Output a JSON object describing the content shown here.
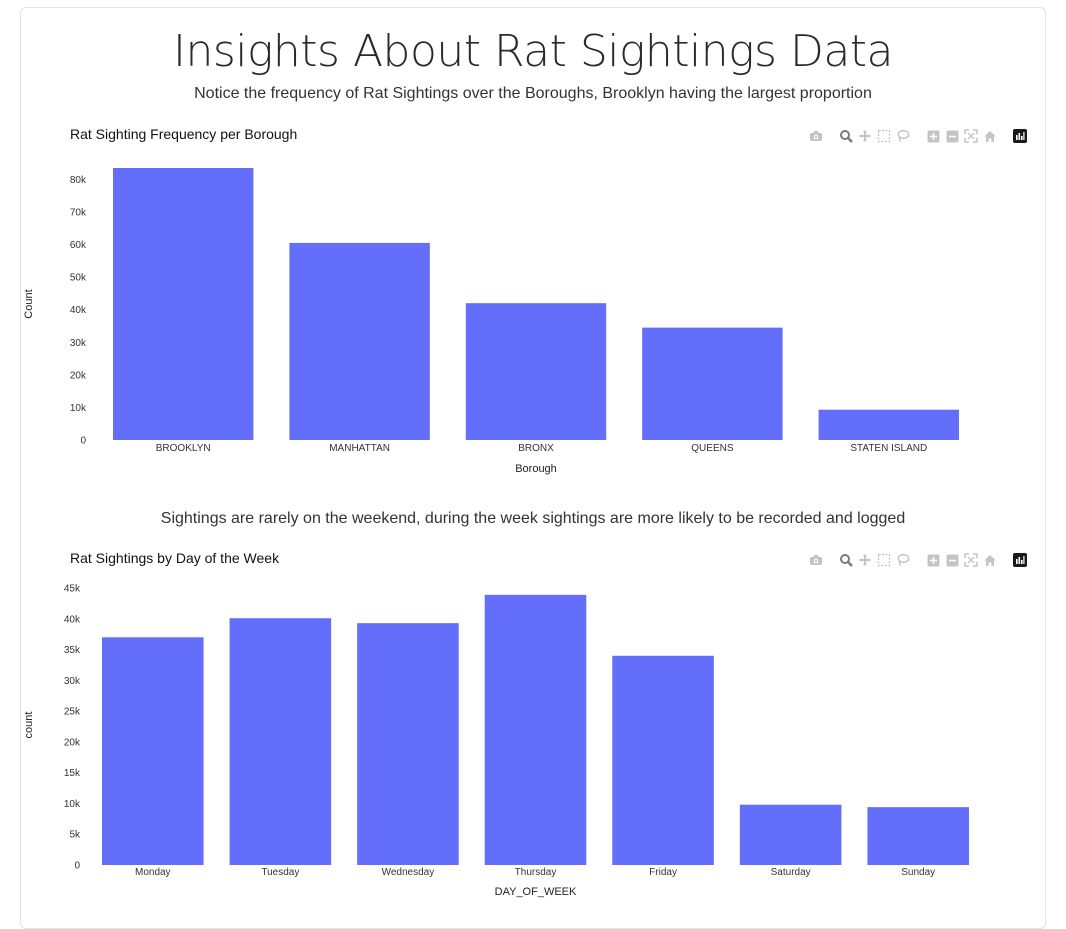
{
  "page": {
    "title": "Insights About Rat Sightings Data",
    "subtitle1": "Notice the frequency of Rat Sightings over the Boroughs, Brooklyn having the largest proportion",
    "subtitle2": "Sightings are rarely on the weekend, during the week sightings are more likely to be recorded and logged"
  },
  "modebar": {
    "icons": [
      "camera-icon",
      "zoom-icon",
      "pan-icon",
      "box-select-icon",
      "lasso-select-icon",
      "zoom-in-icon",
      "zoom-out-icon",
      "autoscale-icon",
      "reset-axes-icon",
      "plotly-logo-icon"
    ]
  },
  "colors": {
    "bar": "#636efa"
  },
  "chart_data": [
    {
      "type": "bar",
      "title": "Rat Sighting Frequency per Borough",
      "xlabel": "Borough",
      "ylabel": "Count",
      "categories": [
        "BROOKLYN",
        "MANHATTAN",
        "BRONX",
        "QUEENS",
        "STATEN ISLAND"
      ],
      "values": [
        83500,
        60500,
        42000,
        34500,
        9300
      ],
      "ylim": [
        0,
        83500
      ],
      "yticks": [
        0,
        10000,
        20000,
        30000,
        40000,
        50000,
        60000,
        70000,
        80000
      ],
      "ytick_labels": [
        "0",
        "10k",
        "20k",
        "30k",
        "40k",
        "50k",
        "60k",
        "70k",
        "80k"
      ],
      "grid": false,
      "color": "#636efa"
    },
    {
      "type": "bar",
      "title": "Rat Sightings by Day of the Week",
      "xlabel": "DAY_OF_WEEK",
      "ylabel": "count",
      "categories": [
        "Monday",
        "Tuesday",
        "Wednesday",
        "Thursday",
        "Friday",
        "Saturday",
        "Sunday"
      ],
      "values": [
        37000,
        40100,
        39300,
        43900,
        34000,
        9800,
        9400
      ],
      "ylim": [
        0,
        45500
      ],
      "yticks": [
        0,
        5000,
        10000,
        15000,
        20000,
        25000,
        30000,
        35000,
        40000,
        45000
      ],
      "ytick_labels": [
        "0",
        "5k",
        "10k",
        "15k",
        "20k",
        "25k",
        "30k",
        "35k",
        "40k",
        "45k"
      ],
      "grid": false,
      "color": "#636efa"
    }
  ]
}
